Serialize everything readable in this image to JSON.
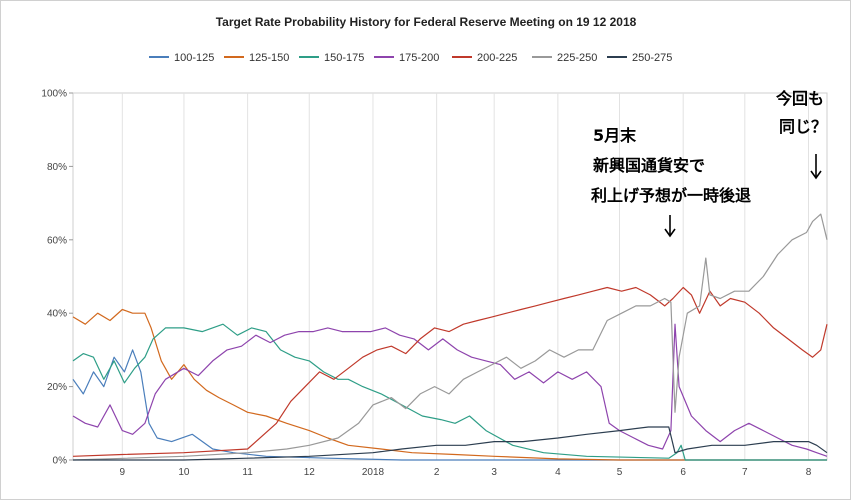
{
  "chart_data": {
    "type": "line",
    "title": "Target Rate Probability History for Federal Reserve Meeting on 19 12 2018",
    "xlabel": "",
    "ylabel": "",
    "ylim": [
      0,
      100
    ],
    "y_ticks": [
      "0%",
      "20%",
      "40%",
      "60%",
      "80%",
      "100%"
    ],
    "x_tick_labels": [
      "9",
      "10",
      "11",
      "12",
      "2018",
      "2",
      "3",
      "4",
      "5",
      "6",
      "7",
      "8"
    ],
    "x_domain": [
      "2017-08-08",
      "2018-08-10"
    ],
    "x_tick_dates": [
      "2017-09-01",
      "2017-10-01",
      "2017-11-01",
      "2017-12-01",
      "2018-01-01",
      "2018-02-01",
      "2018-03-01",
      "2018-04-01",
      "2018-05-01",
      "2018-06-01",
      "2018-07-01",
      "2018-08-01"
    ],
    "grid": "vertical",
    "legend_position": "top",
    "series": [
      {
        "name": "100-125",
        "color": "#4a7ebb",
        "points": [
          [
            "2017-08-08",
            22
          ],
          [
            "2017-08-13",
            18
          ],
          [
            "2017-08-18",
            24
          ],
          [
            "2017-08-23",
            20
          ],
          [
            "2017-08-28",
            28
          ],
          [
            "2017-09-02",
            24
          ],
          [
            "2017-09-06",
            30
          ],
          [
            "2017-09-10",
            24
          ],
          [
            "2017-09-14",
            10
          ],
          [
            "2017-09-18",
            6
          ],
          [
            "2017-09-25",
            5
          ],
          [
            "2017-10-05",
            7
          ],
          [
            "2017-10-15",
            3
          ],
          [
            "2017-10-25",
            2
          ],
          [
            "2017-11-10",
            1
          ],
          [
            "2017-12-10",
            0.5
          ],
          [
            "2018-01-15",
            0
          ],
          [
            "2018-08-10",
            0
          ]
        ]
      },
      {
        "name": "125-150",
        "color": "#d2691e",
        "points": [
          [
            "2017-08-08",
            39
          ],
          [
            "2017-08-14",
            37
          ],
          [
            "2017-08-20",
            40
          ],
          [
            "2017-08-26",
            38
          ],
          [
            "2017-09-01",
            41
          ],
          [
            "2017-09-06",
            40
          ],
          [
            "2017-09-12",
            40
          ],
          [
            "2017-09-15",
            36
          ],
          [
            "2017-09-20",
            27
          ],
          [
            "2017-09-25",
            22
          ],
          [
            "2017-10-01",
            26
          ],
          [
            "2017-10-06",
            22
          ],
          [
            "2017-10-12",
            19
          ],
          [
            "2017-10-18",
            17
          ],
          [
            "2017-10-25",
            15
          ],
          [
            "2017-11-01",
            13
          ],
          [
            "2017-11-10",
            12
          ],
          [
            "2017-11-20",
            10
          ],
          [
            "2017-12-01",
            8
          ],
          [
            "2017-12-10",
            6
          ],
          [
            "2017-12-20",
            4
          ],
          [
            "2018-01-05",
            3
          ],
          [
            "2018-01-20",
            2
          ],
          [
            "2018-02-10",
            1.5
          ],
          [
            "2018-03-01",
            1
          ],
          [
            "2018-04-01",
            0.3
          ],
          [
            "2018-05-01",
            0
          ],
          [
            "2018-08-10",
            0
          ]
        ]
      },
      {
        "name": "150-175",
        "color": "#2e9e87",
        "points": [
          [
            "2017-08-08",
            27
          ],
          [
            "2017-08-13",
            29
          ],
          [
            "2017-08-18",
            28
          ],
          [
            "2017-08-23",
            22
          ],
          [
            "2017-08-28",
            27
          ],
          [
            "2017-09-02",
            21
          ],
          [
            "2017-09-07",
            25
          ],
          [
            "2017-09-12",
            28
          ],
          [
            "2017-09-16",
            33
          ],
          [
            "2017-09-22",
            36
          ],
          [
            "2017-10-01",
            36
          ],
          [
            "2017-10-10",
            35
          ],
          [
            "2017-10-20",
            37
          ],
          [
            "2017-10-27",
            34
          ],
          [
            "2017-11-03",
            36
          ],
          [
            "2017-11-10",
            35
          ],
          [
            "2017-11-17",
            30
          ],
          [
            "2017-11-24",
            28
          ],
          [
            "2017-12-01",
            27
          ],
          [
            "2017-12-08",
            24
          ],
          [
            "2017-12-15",
            22
          ],
          [
            "2017-12-20",
            22
          ],
          [
            "2017-12-27",
            20
          ],
          [
            "2018-01-05",
            18
          ],
          [
            "2018-01-15",
            15
          ],
          [
            "2018-01-25",
            12
          ],
          [
            "2018-02-03",
            11
          ],
          [
            "2018-02-10",
            10
          ],
          [
            "2018-02-17",
            12
          ],
          [
            "2018-02-25",
            8
          ],
          [
            "2018-03-10",
            4
          ],
          [
            "2018-03-25",
            2
          ],
          [
            "2018-04-15",
            1
          ],
          [
            "2018-05-25",
            0.5
          ],
          [
            "2018-05-29",
            2
          ],
          [
            "2018-05-31",
            4
          ],
          [
            "2018-06-02",
            0
          ],
          [
            "2018-08-10",
            0
          ]
        ]
      },
      {
        "name": "175-200",
        "color": "#8e44ad",
        "points": [
          [
            "2017-08-08",
            12
          ],
          [
            "2017-08-14",
            10
          ],
          [
            "2017-08-20",
            9
          ],
          [
            "2017-08-26",
            15
          ],
          [
            "2017-09-01",
            8
          ],
          [
            "2017-09-06",
            7
          ],
          [
            "2017-09-12",
            10
          ],
          [
            "2017-09-17",
            18
          ],
          [
            "2017-09-22",
            22
          ],
          [
            "2017-10-01",
            25
          ],
          [
            "2017-10-08",
            23
          ],
          [
            "2017-10-15",
            27
          ],
          [
            "2017-10-22",
            30
          ],
          [
            "2017-10-29",
            31
          ],
          [
            "2017-11-05",
            34
          ],
          [
            "2017-11-12",
            32
          ],
          [
            "2017-11-19",
            34
          ],
          [
            "2017-11-26",
            35
          ],
          [
            "2017-12-03",
            35
          ],
          [
            "2017-12-10",
            36
          ],
          [
            "2017-12-17",
            35
          ],
          [
            "2017-12-24",
            35
          ],
          [
            "2017-12-31",
            35
          ],
          [
            "2018-01-07",
            36
          ],
          [
            "2018-01-14",
            34
          ],
          [
            "2018-01-21",
            33
          ],
          [
            "2018-01-28",
            30
          ],
          [
            "2018-02-04",
            33
          ],
          [
            "2018-02-11",
            30
          ],
          [
            "2018-02-18",
            28
          ],
          [
            "2018-02-25",
            27
          ],
          [
            "2018-03-04",
            26
          ],
          [
            "2018-03-11",
            22
          ],
          [
            "2018-03-18",
            24
          ],
          [
            "2018-03-25",
            21
          ],
          [
            "2018-04-01",
            24
          ],
          [
            "2018-04-08",
            22
          ],
          [
            "2018-04-15",
            24
          ],
          [
            "2018-04-22",
            20
          ],
          [
            "2018-04-26",
            10
          ],
          [
            "2018-05-01",
            8
          ],
          [
            "2018-05-08",
            6
          ],
          [
            "2018-05-15",
            4
          ],
          [
            "2018-05-22",
            3
          ],
          [
            "2018-05-26",
            8
          ],
          [
            "2018-05-28",
            37
          ],
          [
            "2018-05-30",
            20
          ],
          [
            "2018-06-05",
            12
          ],
          [
            "2018-06-12",
            8
          ],
          [
            "2018-06-19",
            5
          ],
          [
            "2018-06-26",
            8
          ],
          [
            "2018-07-03",
            10
          ],
          [
            "2018-07-10",
            8
          ],
          [
            "2018-07-17",
            6
          ],
          [
            "2018-07-24",
            4
          ],
          [
            "2018-07-31",
            3
          ],
          [
            "2018-08-05",
            2
          ],
          [
            "2018-08-10",
            1
          ]
        ]
      },
      {
        "name": "200-225",
        "color": "#c0392b",
        "points": [
          [
            "2017-08-08",
            1
          ],
          [
            "2017-09-01",
            1.5
          ],
          [
            "2017-10-01",
            2
          ],
          [
            "2017-11-01",
            3
          ],
          [
            "2017-11-15",
            10
          ],
          [
            "2017-11-22",
            16
          ],
          [
            "2017-11-29",
            20
          ],
          [
            "2017-12-06",
            24
          ],
          [
            "2017-12-13",
            22
          ],
          [
            "2017-12-20",
            25
          ],
          [
            "2017-12-27",
            28
          ],
          [
            "2018-01-03",
            30
          ],
          [
            "2018-01-10",
            31
          ],
          [
            "2018-01-17",
            29
          ],
          [
            "2018-01-24",
            33
          ],
          [
            "2018-01-31",
            36
          ],
          [
            "2018-02-07",
            35
          ],
          [
            "2018-02-14",
            37
          ],
          [
            "2018-02-21",
            38
          ],
          [
            "2018-02-28",
            39
          ],
          [
            "2018-03-07",
            40
          ],
          [
            "2018-03-14",
            41
          ],
          [
            "2018-03-21",
            42
          ],
          [
            "2018-03-28",
            43
          ],
          [
            "2018-04-04",
            44
          ],
          [
            "2018-04-11",
            45
          ],
          [
            "2018-04-18",
            46
          ],
          [
            "2018-04-25",
            47
          ],
          [
            "2018-05-02",
            46
          ],
          [
            "2018-05-09",
            47
          ],
          [
            "2018-05-16",
            45
          ],
          [
            "2018-05-23",
            42
          ],
          [
            "2018-05-27",
            44
          ],
          [
            "2018-06-01",
            47
          ],
          [
            "2018-06-05",
            45
          ],
          [
            "2018-06-09",
            40
          ],
          [
            "2018-06-14",
            46
          ],
          [
            "2018-06-19",
            42
          ],
          [
            "2018-06-24",
            44
          ],
          [
            "2018-07-01",
            43
          ],
          [
            "2018-07-08",
            40
          ],
          [
            "2018-07-15",
            36
          ],
          [
            "2018-07-22",
            33
          ],
          [
            "2018-07-29",
            30
          ],
          [
            "2018-08-03",
            28
          ],
          [
            "2018-08-07",
            30
          ],
          [
            "2018-08-10",
            37
          ]
        ]
      },
      {
        "name": "225-250",
        "color": "#999999",
        "points": [
          [
            "2017-08-08",
            0
          ],
          [
            "2017-10-01",
            1
          ],
          [
            "2017-11-01",
            2
          ],
          [
            "2017-11-20",
            3
          ],
          [
            "2017-12-01",
            4
          ],
          [
            "2017-12-15",
            6
          ],
          [
            "2017-12-25",
            10
          ],
          [
            "2018-01-01",
            15
          ],
          [
            "2018-01-10",
            17
          ],
          [
            "2018-01-17",
            14
          ],
          [
            "2018-01-24",
            18
          ],
          [
            "2018-01-31",
            20
          ],
          [
            "2018-02-07",
            18
          ],
          [
            "2018-02-14",
            22
          ],
          [
            "2018-02-21",
            24
          ],
          [
            "2018-02-28",
            26
          ],
          [
            "2018-03-07",
            28
          ],
          [
            "2018-03-14",
            25
          ],
          [
            "2018-03-21",
            27
          ],
          [
            "2018-03-28",
            30
          ],
          [
            "2018-04-04",
            28
          ],
          [
            "2018-04-11",
            30
          ],
          [
            "2018-04-18",
            30
          ],
          [
            "2018-04-25",
            38
          ],
          [
            "2018-05-02",
            40
          ],
          [
            "2018-05-09",
            42
          ],
          [
            "2018-05-16",
            42
          ],
          [
            "2018-05-23",
            44
          ],
          [
            "2018-05-26",
            43
          ],
          [
            "2018-05-28",
            13
          ],
          [
            "2018-05-30",
            28
          ],
          [
            "2018-06-03",
            40
          ],
          [
            "2018-06-09",
            42
          ],
          [
            "2018-06-12",
            55
          ],
          [
            "2018-06-14",
            45
          ],
          [
            "2018-06-19",
            44
          ],
          [
            "2018-06-26",
            46
          ],
          [
            "2018-07-03",
            46
          ],
          [
            "2018-07-10",
            50
          ],
          [
            "2018-07-17",
            56
          ],
          [
            "2018-07-24",
            60
          ],
          [
            "2018-07-31",
            62
          ],
          [
            "2018-08-03",
            65
          ],
          [
            "2018-08-07",
            67
          ],
          [
            "2018-08-10",
            60
          ]
        ]
      },
      {
        "name": "250-275",
        "color": "#2c3e50",
        "points": [
          [
            "2017-08-08",
            0
          ],
          [
            "2017-10-01",
            0
          ],
          [
            "2017-11-01",
            0.5
          ],
          [
            "2017-12-01",
            1
          ],
          [
            "2018-01-01",
            2
          ],
          [
            "2018-01-15",
            3
          ],
          [
            "2018-02-01",
            4
          ],
          [
            "2018-02-15",
            4
          ],
          [
            "2018-03-01",
            5
          ],
          [
            "2018-03-15",
            5
          ],
          [
            "2018-04-01",
            6
          ],
          [
            "2018-04-15",
            7
          ],
          [
            "2018-05-01",
            8
          ],
          [
            "2018-05-15",
            9
          ],
          [
            "2018-05-25",
            9
          ],
          [
            "2018-05-28",
            2
          ],
          [
            "2018-06-03",
            3
          ],
          [
            "2018-06-15",
            4
          ],
          [
            "2018-07-01",
            4
          ],
          [
            "2018-07-15",
            5
          ],
          [
            "2018-08-01",
            5
          ],
          [
            "2018-08-05",
            4
          ],
          [
            "2018-08-10",
            2
          ]
        ]
      }
    ]
  },
  "annotations": {
    "mid_line1": "5月末",
    "mid_line2": "新興国通貨安で",
    "mid_line3": "利上げ予想が一時後退",
    "right_line1": "今回も",
    "right_line2": "同じ？"
  }
}
